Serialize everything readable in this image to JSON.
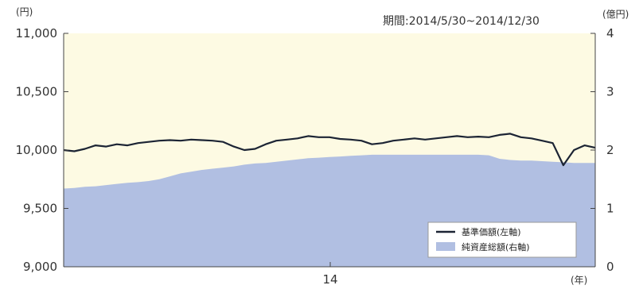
{
  "chart_data": {
    "type": "line",
    "period": "期間:2014/5/30~2014/12/30",
    "left_unit": "(円)",
    "right_unit": "(億円)",
    "x_unit": "(年)",
    "x_tick_label": "14",
    "left_ticks": [
      "11,000",
      "10,500",
      "10,000",
      "9,500",
      "9,000"
    ],
    "right_ticks": [
      "4",
      "3",
      "2",
      "1",
      "0"
    ],
    "left_ylim": [
      9000,
      11000
    ],
    "right_ylim": [
      0,
      4
    ],
    "grid": false,
    "legend_placement": "bottom-right",
    "plot_background": "#fdfae3",
    "series": [
      {
        "name": "基準価額(左軸)",
        "axis": "left",
        "style": "line",
        "color": "#1c2434",
        "values": [
          10000,
          9990,
          10010,
          10040,
          10030,
          10050,
          10040,
          10060,
          10070,
          10080,
          10085,
          10080,
          10090,
          10085,
          10080,
          10070,
          10030,
          10000,
          10010,
          10050,
          10080,
          10090,
          10100,
          10120,
          10110,
          10110,
          10095,
          10090,
          10080,
          10050,
          10060,
          10080,
          10090,
          10100,
          10090,
          10100,
          10110,
          10120,
          10110,
          10115,
          10110,
          10130,
          10140,
          10110,
          10100,
          10080,
          10060,
          9870,
          10000,
          10040,
          10020
        ]
      },
      {
        "name": "純資産総額(右軸)",
        "axis": "right",
        "style": "area",
        "color": "#b1bfe2",
        "values": [
          1.34,
          1.35,
          1.37,
          1.38,
          1.4,
          1.42,
          1.44,
          1.45,
          1.47,
          1.5,
          1.55,
          1.6,
          1.63,
          1.66,
          1.68,
          1.7,
          1.72,
          1.75,
          1.77,
          1.78,
          1.8,
          1.82,
          1.84,
          1.86,
          1.87,
          1.88,
          1.89,
          1.9,
          1.91,
          1.92,
          1.92,
          1.92,
          1.92,
          1.92,
          1.92,
          1.92,
          1.92,
          1.92,
          1.92,
          1.92,
          1.91,
          1.85,
          1.83,
          1.82,
          1.82,
          1.81,
          1.8,
          1.79,
          1.78,
          1.78,
          1.78
        ]
      }
    ]
  }
}
